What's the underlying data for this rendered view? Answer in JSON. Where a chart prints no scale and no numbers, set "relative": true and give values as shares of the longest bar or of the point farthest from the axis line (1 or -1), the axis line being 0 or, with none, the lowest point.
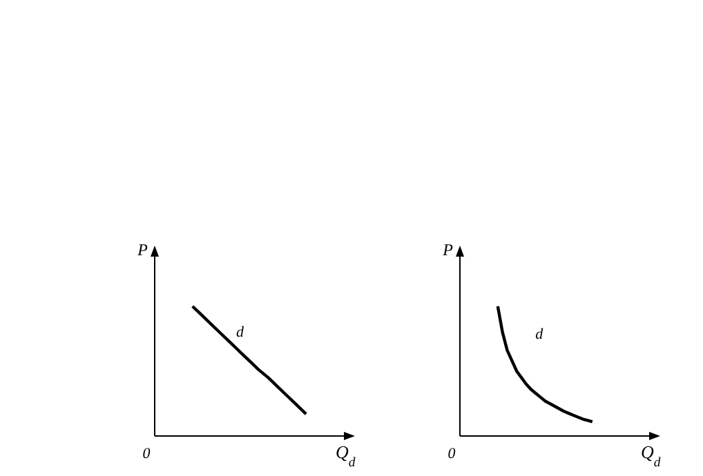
{
  "chart_data": [
    {
      "type": "line",
      "relative": true,
      "xlabel": "Q$_{d}$",
      "ylabel": "P",
      "line_style": "solid",
      "annotations": [
        "0",
        "d"
      ],
      "categories": [
        null,
        null,
        null,
        null,
        null,
        null,
        null,
        null,
        null,
        null,
        null,
        null,
        null,
        null,
        null,
        null,
        null,
        null,
        null,
        null,
        null
      ],
      "series": [
        {
          "color": "#000000",
          "values": [
            null,
            null,
            null,
            null,
            1,
            0.93,
            0.86,
            0.79,
            0.72,
            0.65,
            0.58,
            0.51,
            0.45,
            0.38,
            0.31,
            0.24,
            0.17,
            null,
            null,
            null,
            null
          ]
        }
      ]
    },
    {
      "type": "line",
      "relative": true,
      "xlabel": "Q$_{d}$",
      "ylabel": "P",
      "line_style": "solid",
      "annotations": [
        "0",
        "d"
      ],
      "categories": [
        null,
        null,
        null,
        null,
        null,
        null,
        null,
        null,
        null,
        null,
        null,
        null,
        null,
        null,
        null,
        null,
        null,
        null,
        null,
        null,
        null,
        null,
        null,
        null,
        null,
        null,
        null,
        null,
        null,
        null,
        null,
        null,
        null,
        null,
        null,
        null,
        null,
        null,
        null,
        null,
        null
      ],
      "series": [
        {
          "color": "#000000",
          "values": [
            null,
            null,
            null,
            null,
            null,
            null,
            null,
            null,
            1,
            0.8,
            0.66,
            0.58,
            0.5,
            0.45,
            0.4,
            0.36,
            0.33,
            0.3,
            0.27,
            0.25,
            0.23,
            0.21,
            0.19,
            0.175,
            0.16,
            0.145,
            0.13,
            0.12,
            0.11,
            null,
            null,
            null,
            null,
            null,
            null,
            null,
            null,
            null,
            null,
            null,
            null
          ]
        }
      ]
    }
  ]
}
